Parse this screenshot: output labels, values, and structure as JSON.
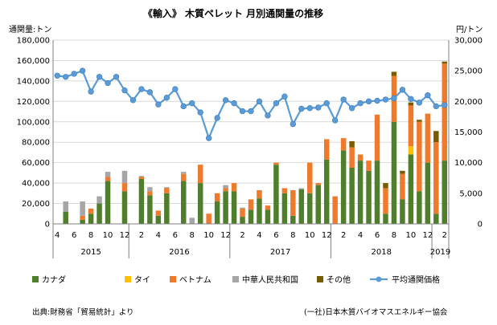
{
  "chart_data": {
    "type": "bar",
    "stacked": true,
    "title": "《輸入》 木質ペレット 月別通関量の推移",
    "ylabel_left": "通関量:トン",
    "ylabel_right": "円/トン",
    "ylim_left": [
      0,
      180000
    ],
    "yticks_left": [
      "0",
      "20,000",
      "40,000",
      "60,000",
      "80,000",
      "100,000",
      "120,000",
      "140,000",
      "160,000",
      "180,000"
    ],
    "ylim_right": [
      0,
      30000
    ],
    "yticks_right": [
      "0",
      "5,000",
      "10,000",
      "15,000",
      "20,000",
      "25,000",
      "30,000"
    ],
    "grid": true,
    "legend_position": "bottom",
    "x_tick_labels": [
      "4",
      "6",
      "8",
      "10",
      "12",
      "2",
      "4",
      "6",
      "8",
      "10",
      "12",
      "2",
      "4",
      "6",
      "8",
      "10",
      "12",
      "2",
      "4",
      "6",
      "8",
      "10",
      "12",
      "2"
    ],
    "years": [
      {
        "label": "2015",
        "start": 0,
        "end": 8
      },
      {
        "label": "2016",
        "start": 9,
        "end": 20
      },
      {
        "label": "2017",
        "start": 21,
        "end": 32
      },
      {
        "label": "2018",
        "start": 33,
        "end": 44
      },
      {
        "label": "2019",
        "start": 45,
        "end": 46
      }
    ],
    "months": [
      "2015-04",
      "2015-05",
      "2015-06",
      "2015-07",
      "2015-08",
      "2015-09",
      "2015-10",
      "2015-11",
      "2015-12",
      "2016-01",
      "2016-02",
      "2016-03",
      "2016-04",
      "2016-05",
      "2016-06",
      "2016-07",
      "2016-08",
      "2016-09",
      "2016-10",
      "2016-11",
      "2016-12",
      "2017-01",
      "2017-02",
      "2017-03",
      "2017-04",
      "2017-05",
      "2017-06",
      "2017-07",
      "2017-08",
      "2017-09",
      "2017-10",
      "2017-11",
      "2017-12",
      "2018-01",
      "2018-02",
      "2018-03",
      "2018-04",
      "2018-05",
      "2018-06",
      "2018-07",
      "2018-08",
      "2018-09",
      "2018-10",
      "2018-11",
      "2018-12",
      "2019-01",
      "2019-02"
    ],
    "series": [
      {
        "name": "カナダ",
        "color": "#4f7f2c",
        "kind": "bar",
        "values": [
          0,
          12000,
          0,
          4000,
          10000,
          20000,
          42000,
          0,
          32000,
          0,
          44000,
          28000,
          8000,
          30000,
          0,
          42000,
          0,
          40000,
          0,
          22000,
          32000,
          32000,
          7000,
          14000,
          25000,
          14000,
          58000,
          30000,
          8000,
          34000,
          30000,
          38000,
          63000,
          0,
          72000,
          55000,
          62000,
          52000,
          62000,
          10000,
          100000,
          24000,
          68000,
          32000,
          60000,
          10000,
          62000
        ]
      },
      {
        "name": "タイ",
        "color": "#ffc000",
        "kind": "bar",
        "values": [
          0,
          0,
          0,
          0,
          0,
          0,
          0,
          0,
          0,
          0,
          0,
          0,
          0,
          0,
          0,
          0,
          0,
          0,
          0,
          0,
          0,
          0,
          0,
          0,
          0,
          0,
          0,
          0,
          0,
          0,
          0,
          0,
          0,
          0,
          0,
          0,
          0,
          0,
          0,
          0,
          0,
          0,
          8000,
          0,
          0,
          0,
          0
        ]
      },
      {
        "name": "ベトナム",
        "color": "#f07a2c",
        "kind": "bar",
        "values": [
          0,
          0,
          0,
          4000,
          5000,
          0,
          4000,
          0,
          8000,
          0,
          2000,
          4000,
          5000,
          5000,
          0,
          7000,
          0,
          18000,
          10000,
          8000,
          3000,
          8000,
          8000,
          10000,
          8000,
          4000,
          2000,
          5000,
          25000,
          0,
          30000,
          2000,
          20000,
          27000,
          12000,
          20000,
          6000,
          10000,
          45000,
          25000,
          45000,
          25000,
          40000,
          68000,
          48000,
          70000,
          95000
        ]
      },
      {
        "name": "中華人民共和国",
        "color": "#a6a6a6",
        "kind": "bar",
        "values": [
          0,
          10000,
          0,
          14000,
          0,
          7000,
          5000,
          0,
          12000,
          0,
          1000,
          4000,
          0,
          1000,
          0,
          2000,
          6000,
          0,
          0,
          0,
          3000,
          0,
          1000,
          0,
          0,
          0,
          0,
          0,
          0,
          1000,
          0,
          0,
          0,
          0,
          0,
          0,
          0,
          0,
          0,
          0,
          0,
          0,
          0,
          0,
          0,
          0,
          0
        ]
      },
      {
        "name": "その他",
        "color": "#7a5c00",
        "kind": "bar",
        "values": [
          0,
          0,
          0,
          0,
          0,
          0,
          0,
          0,
          0,
          0,
          0,
          0,
          0,
          0,
          0,
          0,
          0,
          0,
          0,
          0,
          0,
          0,
          0,
          0,
          0,
          0,
          0,
          0,
          0,
          0,
          0,
          0,
          0,
          0,
          0,
          6000,
          0,
          0,
          0,
          5000,
          4000,
          3000,
          3000,
          2000,
          0,
          11000,
          2000
        ]
      },
      {
        "name": "平均通関価格",
        "color": "#5b9bd5",
        "kind": "line",
        "axis": "right",
        "values": [
          24200,
          24000,
          24500,
          25000,
          21600,
          24000,
          23000,
          24000,
          21800,
          20200,
          22000,
          21500,
          19500,
          20600,
          22000,
          19200,
          19700,
          18200,
          14000,
          17300,
          20200,
          19700,
          18400,
          18400,
          20000,
          17700,
          19700,
          20800,
          16300,
          18800,
          18900,
          19000,
          19700,
          16900,
          20300,
          18900,
          19700,
          20000,
          20100,
          20300,
          20500,
          21900,
          20400,
          19800,
          21000,
          19200,
          19400
        ]
      }
    ]
  },
  "footer": {
    "source": "出典:財務省「貿易統計」より",
    "organization": "(一社)日本木質バイオマスエネルギー協会"
  }
}
